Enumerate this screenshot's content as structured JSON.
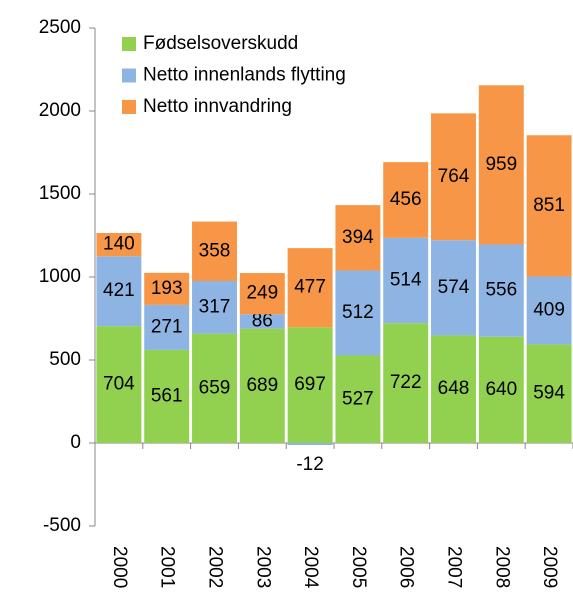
{
  "chart_data": {
    "type": "stacked_bar",
    "categories": [
      "2000",
      "2001",
      "2002",
      "2003",
      "2004",
      "2005",
      "2006",
      "2007",
      "2008",
      "2009"
    ],
    "series": [
      {
        "name": "Fødselsoverskudd",
        "color": "#92d050",
        "values": [
          704,
          561,
          659,
          689,
          697,
          527,
          722,
          648,
          640,
          594
        ]
      },
      {
        "name": "Netto innenlands flytting",
        "color": "#8eb4e3",
        "values": [
          421,
          271,
          317,
          86,
          -12,
          512,
          514,
          574,
          556,
          409
        ]
      },
      {
        "name": "Netto innvandring",
        "color": "#f79646",
        "values": [
          140,
          193,
          358,
          249,
          477,
          394,
          456,
          764,
          959,
          851
        ]
      }
    ],
    "ylim": [
      -500,
      2500
    ],
    "yticks": [
      -500,
      0,
      500,
      1000,
      1500,
      2000,
      2500
    ],
    "legend": "top-left"
  }
}
